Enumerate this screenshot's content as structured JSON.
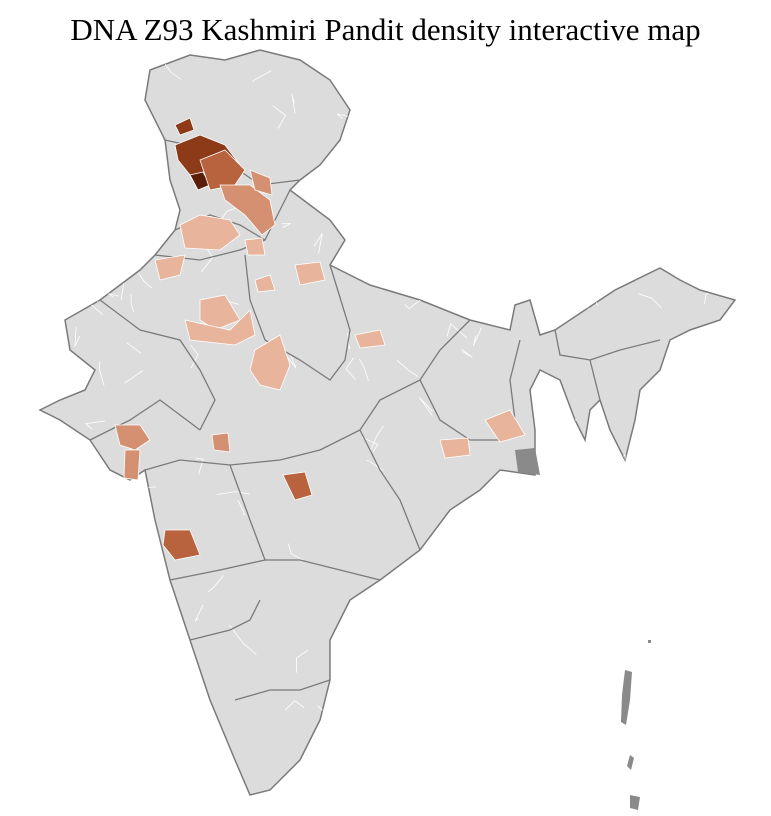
{
  "title": "DNA Z93 Kashmiri Pandit density interactive map",
  "colors": {
    "base": "#dcdcdc",
    "district_border": "#ffffff",
    "state_border": "#7a7a7a",
    "no_data": "#8a8a8a",
    "scale": [
      "#f2d6c8",
      "#e8b49b",
      "#d49070",
      "#b8633d",
      "#8c3a18",
      "#5a1e08"
    ]
  },
  "regions": [
    {
      "name": "kashmir-valley-north",
      "level": 4
    },
    {
      "name": "kashmir-valley",
      "level": 4
    },
    {
      "name": "kashmir-core",
      "level": 5
    },
    {
      "name": "jammu",
      "level": 3
    },
    {
      "name": "himachal",
      "level": 2
    },
    {
      "name": "uttarakhand-west",
      "level": 2
    },
    {
      "name": "punjab",
      "level": 1
    },
    {
      "name": "haryana",
      "level": 1
    },
    {
      "name": "delhi-ncr",
      "level": 1
    },
    {
      "name": "rajasthan-north",
      "level": 1
    },
    {
      "name": "rajasthan-central",
      "level": 1
    },
    {
      "name": "rajasthan-east",
      "level": 1
    },
    {
      "name": "up-west",
      "level": 1
    },
    {
      "name": "up-central",
      "level": 1
    },
    {
      "name": "mp-north",
      "level": 1
    },
    {
      "name": "mp-bhopal",
      "level": 2
    },
    {
      "name": "gujarat",
      "level": 2
    },
    {
      "name": "gujarat-south",
      "level": 2
    },
    {
      "name": "maharashtra-nagpur",
      "level": 3
    },
    {
      "name": "maharashtra-pune",
      "level": 3
    },
    {
      "name": "jharkhand",
      "level": 1
    },
    {
      "name": "west-bengal",
      "level": 1
    }
  ]
}
